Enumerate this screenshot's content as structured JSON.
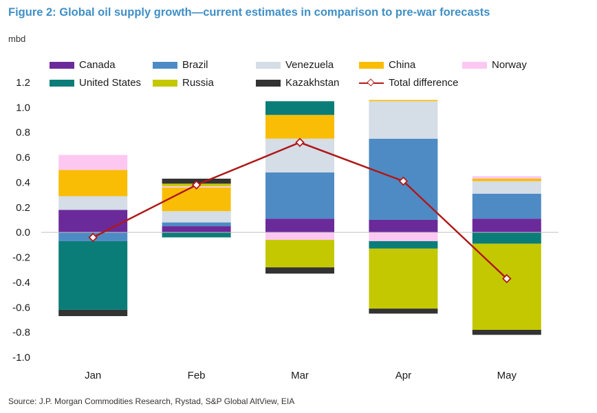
{
  "figure": {
    "title": "Figure 2: Global oil supply growth—current estimates in comparison to pre-war forecasts",
    "unit_label": "mbd",
    "source": "Source: J.P. Morgan Commodities Research, Rystad, S&P Global AltView, EIA"
  },
  "chart_data": {
    "type": "bar",
    "stacked": true,
    "title": "Figure 2: Global oil supply growth—current estimates in comparison to pre-war forecasts",
    "ylabel": "mbd",
    "ylim": [
      -1.0,
      1.2
    ],
    "yticks": [
      "1.2",
      "1.0",
      "0.8",
      "0.6",
      "0.4",
      "0.2",
      "0.0",
      "-0.2",
      "-0.4",
      "-0.6",
      "-0.8",
      "-1.0"
    ],
    "categories": [
      "Jan",
      "Feb",
      "Mar",
      "Apr",
      "May"
    ],
    "legend_position": "top",
    "series": [
      {
        "name": "Canada",
        "color": "#6b2a9a",
        "values": [
          0.18,
          0.05,
          0.11,
          0.1,
          0.11
        ]
      },
      {
        "name": "Brazil",
        "color": "#4e8bc4",
        "values": [
          -0.07,
          0.03,
          0.37,
          0.65,
          0.2
        ]
      },
      {
        "name": "Venezuela",
        "color": "#d5dde7",
        "values": [
          0.11,
          0.09,
          0.27,
          0.3,
          0.1
        ]
      },
      {
        "name": "China",
        "color": "#f9bd05",
        "values": [
          0.21,
          0.19,
          0.19,
          0.01,
          0.02
        ]
      },
      {
        "name": "Norway",
        "color": "#fcc8f2",
        "values": [
          0.12,
          0.01,
          -0.06,
          -0.07,
          0.02
        ]
      },
      {
        "name": "United States",
        "color": "#0b7d78",
        "values": [
          -0.55,
          -0.04,
          0.11,
          -0.06,
          -0.09
        ]
      },
      {
        "name": "Russia",
        "color": "#c4c800",
        "values": [
          0.0,
          0.02,
          -0.22,
          -0.48,
          -0.69
        ]
      },
      {
        "name": "Kazakhstan",
        "color": "#333333",
        "values": [
          -0.05,
          0.04,
          -0.05,
          -0.04,
          -0.04
        ]
      }
    ],
    "line_series": {
      "name": "Total difference",
      "color": "#b01818",
      "values": [
        -0.04,
        0.38,
        0.72,
        0.41,
        -0.37
      ]
    }
  }
}
